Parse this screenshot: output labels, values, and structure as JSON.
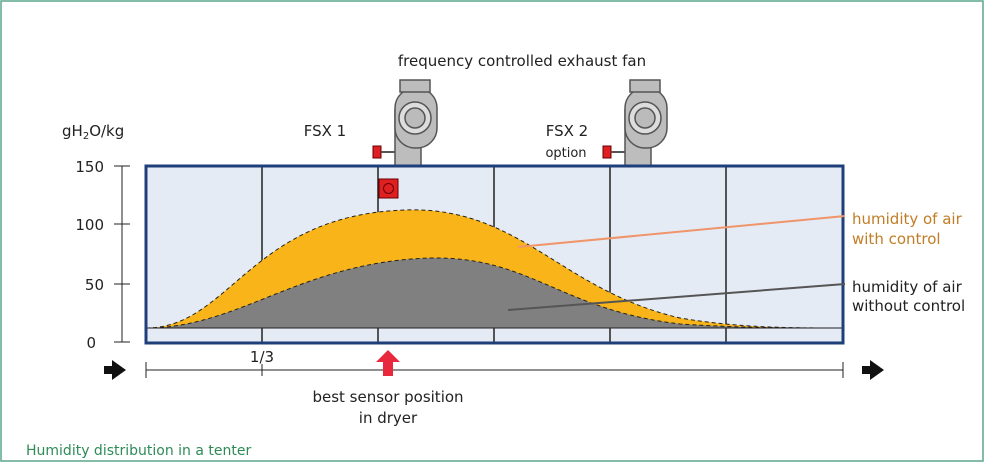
{
  "header": {
    "title": "frequency controlled exhaust fan"
  },
  "axis": {
    "unit": [
      "gH",
      "2",
      "O/kg"
    ],
    "ticks": [
      "150",
      "100",
      "50",
      "0"
    ]
  },
  "fans": [
    {
      "label": "FSX 1"
    },
    {
      "label": "FSX 2",
      "note": "option"
    }
  ],
  "legend": [
    {
      "lines": [
        "humidity of air",
        "with control"
      ]
    },
    {
      "lines": [
        "humidity of air",
        "without control"
      ]
    }
  ],
  "length_mark": "1/3",
  "sensor": {
    "lines": [
      "best sensor position",
      "in dryer"
    ]
  },
  "caption": "Humidity distribution in a tenter"
}
